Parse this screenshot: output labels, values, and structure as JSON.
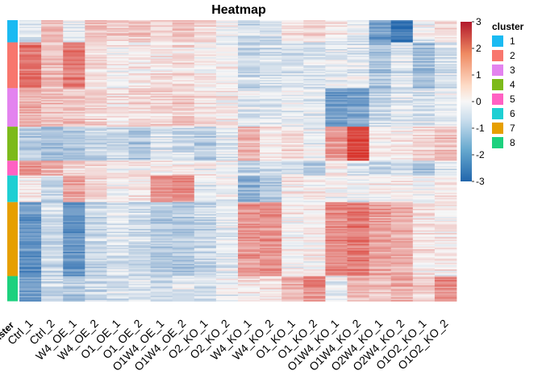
{
  "chart_data": {
    "type": "heatmap",
    "title": "Heatmap",
    "columns": [
      "Ctrl_1",
      "Ctrl_2",
      "W4_OE_1",
      "W4_OE_2",
      "O1_OE_1",
      "O1_OE_2",
      "O1W4_OE_1",
      "O1W4_OE_2",
      "O2_KO_1",
      "O2_KO_2",
      "W4_KO_1",
      "W4_KO_2",
      "O1_KO_1",
      "O1_KO_2",
      "O1W4_KO_1",
      "O1W4_KO_2",
      "O2W4_KO_1",
      "O2W4_KO_2",
      "O1O2_KO_1",
      "O1O2_KO_2"
    ],
    "row_annotation_label": "cluster",
    "clusters": [
      {
        "id": "1",
        "color": "#1ABAF2",
        "row_fraction": 0.075,
        "values": [
          -0.3,
          0.9,
          -0.3,
          0.9,
          0.6,
          0.7,
          0.5,
          0.8,
          0.5,
          -0.1,
          -0.5,
          -0.4,
          0.3,
          0.5,
          0.1,
          -0.1,
          -1.8,
          -2.7,
          -0.1,
          0.4
        ]
      },
      {
        "id": "2",
        "color": "#F8766D",
        "row_fraction": 0.155,
        "values": [
          2.0,
          0.9,
          1.9,
          0.5,
          0.1,
          0.2,
          0.3,
          0.4,
          0.2,
          0.1,
          -0.6,
          -0.5,
          -0.4,
          -0.4,
          -0.2,
          -0.3,
          -1.0,
          -0.4,
          -1.2,
          -0.5
        ]
      },
      {
        "id": "3",
        "color": "#E383EF",
        "row_fraction": 0.13,
        "values": [
          1.2,
          0.9,
          0.8,
          0.6,
          0.3,
          0.5,
          0.5,
          0.7,
          0.4,
          0.2,
          -0.3,
          -0.3,
          -0.2,
          -0.3,
          -1.8,
          -1.7,
          -0.6,
          -0.3,
          -0.4,
          -0.2
        ]
      },
      {
        "id": "4",
        "color": "#7CBA1A",
        "row_fraction": 0.115,
        "values": [
          -1.0,
          -1.2,
          -1.0,
          -0.7,
          -0.6,
          -1.0,
          -0.4,
          -0.6,
          -0.9,
          -0.3,
          1.0,
          0.3,
          0.4,
          -0.1,
          1.4,
          2.7,
          0.2,
          0.2,
          0.6,
          0.8
        ]
      },
      {
        "id": "5",
        "color": "#FF61C3",
        "row_fraction": 0.05,
        "values": [
          1.5,
          1.0,
          0.5,
          0.3,
          0.1,
          0.1,
          0.0,
          0.1,
          0.0,
          -0.1,
          -0.8,
          -0.6,
          -0.4,
          -1.0,
          0.2,
          -0.6,
          -0.8,
          -0.5,
          -1.0,
          -0.3
        ]
      },
      {
        "id": "6",
        "color": "#1DCFD3",
        "row_fraction": 0.09,
        "values": [
          0.1,
          -0.7,
          1.2,
          0.3,
          0.0,
          0.2,
          1.3,
          1.5,
          -0.3,
          -0.2,
          -1.5,
          -1.2,
          0.2,
          0.1,
          -0.1,
          -0.2,
          0.1,
          0.1,
          -0.2,
          0.3
        ]
      },
      {
        "id": "7",
        "color": "#E69F00",
        "row_fraction": 0.25,
        "values": [
          -2.0,
          -0.6,
          -2.0,
          -0.7,
          -0.4,
          -0.6,
          -0.9,
          -1.0,
          -0.7,
          -0.3,
          1.4,
          1.5,
          0.1,
          0.1,
          1.6,
          1.9,
          1.3,
          1.1,
          0.3,
          0.2
        ]
      },
      {
        "id": "8",
        "color": "#1CD17E",
        "row_fraction": 0.085,
        "values": [
          -1.8,
          -0.7,
          -0.9,
          -0.6,
          -0.5,
          -0.4,
          -0.6,
          -0.3,
          -0.4,
          -0.1,
          0.2,
          0.3,
          1.0,
          1.6,
          -0.2,
          1.0,
          0.9,
          1.1,
          0.7,
          1.6
        ]
      }
    ],
    "colorbar": {
      "min": -3,
      "max": 3,
      "ticks": [
        "3",
        "2",
        "1",
        "0",
        "-1",
        "-2",
        "-3"
      ],
      "colors": [
        "#2166AC",
        "#F7F7F7",
        "#D73027"
      ]
    },
    "legend": {
      "title": "cluster",
      "position": "right"
    }
  }
}
